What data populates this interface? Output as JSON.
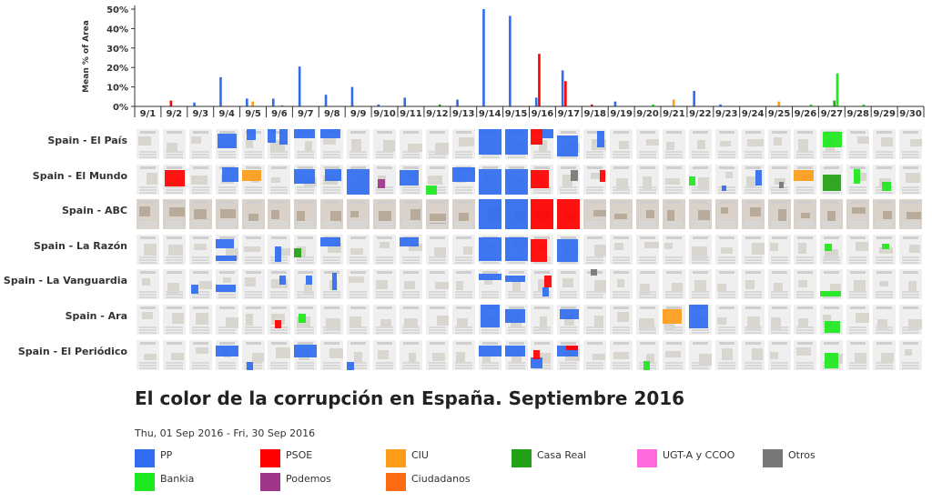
{
  "chart_data": {
    "type": "bar",
    "title": "El color de la corrupción en España. Septiembre 2016",
    "date_range": "Thu, 01 Sep 2016 - Fri, 30 Sep 2016",
    "ylabel": "Mean % of Area",
    "ylim": [
      0,
      50
    ],
    "yticks": [
      "0%",
      "10%",
      "20%",
      "30%",
      "40%",
      "50%"
    ],
    "categories": [
      "9/1",
      "9/2",
      "9/3",
      "9/4",
      "9/5",
      "9/6",
      "9/7",
      "9/8",
      "9/9",
      "9/10",
      "9/11",
      "9/12",
      "9/13",
      "9/14",
      "9/15",
      "9/16",
      "9/17",
      "9/18",
      "9/19",
      "9/20",
      "9/21",
      "9/22",
      "9/23",
      "9/24",
      "9/25",
      "9/26",
      "9/27",
      "9/28",
      "9/29",
      "9/30"
    ],
    "series": [
      {
        "name": "PP",
        "color": "#2f6cf0",
        "values": [
          0,
          0,
          2,
          15,
          4,
          4,
          20.5,
          6,
          10,
          1,
          4.5,
          0,
          3.5,
          50,
          46.5,
          4.5,
          18.5,
          0,
          2.5,
          0,
          0,
          8,
          1,
          0,
          0,
          0,
          0,
          0,
          0,
          0
        ]
      },
      {
        "name": "PSOE",
        "color": "#ff0000",
        "values": [
          0,
          3,
          0,
          0,
          0,
          0,
          0,
          0,
          0,
          0,
          0,
          0,
          0,
          0,
          0,
          27,
          13,
          1,
          0,
          0,
          0,
          0,
          0,
          0,
          0,
          0,
          0,
          0,
          0,
          0
        ]
      },
      {
        "name": "CIU",
        "color": "#ff9c19",
        "values": [
          0,
          0,
          0,
          0,
          2.5,
          0,
          0,
          0,
          0,
          0,
          0,
          0,
          0,
          0,
          0,
          0,
          0,
          0,
          0,
          0,
          3.5,
          0,
          0,
          0,
          2.5,
          0,
          0,
          0,
          0,
          0
        ]
      },
      {
        "name": "Casa Real",
        "color": "#22a214",
        "values": [
          0,
          0,
          0,
          0,
          0,
          0.5,
          0,
          0,
          0,
          0,
          0,
          1,
          0,
          0,
          0,
          0,
          0,
          0,
          0,
          0,
          0,
          0,
          0,
          0,
          0,
          0,
          3,
          0,
          0,
          0
        ]
      },
      {
        "name": "Bankia",
        "color": "#1ee81e",
        "values": [
          0,
          0,
          0,
          0,
          0,
          0,
          0,
          0,
          0,
          0,
          0,
          0,
          0,
          0,
          0,
          0,
          0,
          0,
          0,
          1,
          0,
          0,
          0,
          0,
          0,
          1,
          17,
          1,
          0,
          0
        ]
      }
    ],
    "legend": [
      {
        "name": "PP",
        "color": "#2f6cf0"
      },
      {
        "name": "PSOE",
        "color": "#ff0000"
      },
      {
        "name": "CIU",
        "color": "#ff9c19"
      },
      {
        "name": "Casa Real",
        "color": "#22a214"
      },
      {
        "name": "UGT-A y CCOO",
        "color": "#ff69dc"
      },
      {
        "name": "Otros",
        "color": "#777777"
      },
      {
        "name": "Bankia",
        "color": "#1ee81e"
      },
      {
        "name": "Podemos",
        "color": "#a0368a"
      },
      {
        "name": "Ciudadanos",
        "color": "#ff6b14"
      }
    ],
    "newspapers": [
      "Spain - El País",
      "Spain - El Mundo",
      "Spain - ABC",
      "Spain - La Razón",
      "Spain - La Vanguardia",
      "Spain - Ara",
      "Spain - El Periódico"
    ]
  }
}
